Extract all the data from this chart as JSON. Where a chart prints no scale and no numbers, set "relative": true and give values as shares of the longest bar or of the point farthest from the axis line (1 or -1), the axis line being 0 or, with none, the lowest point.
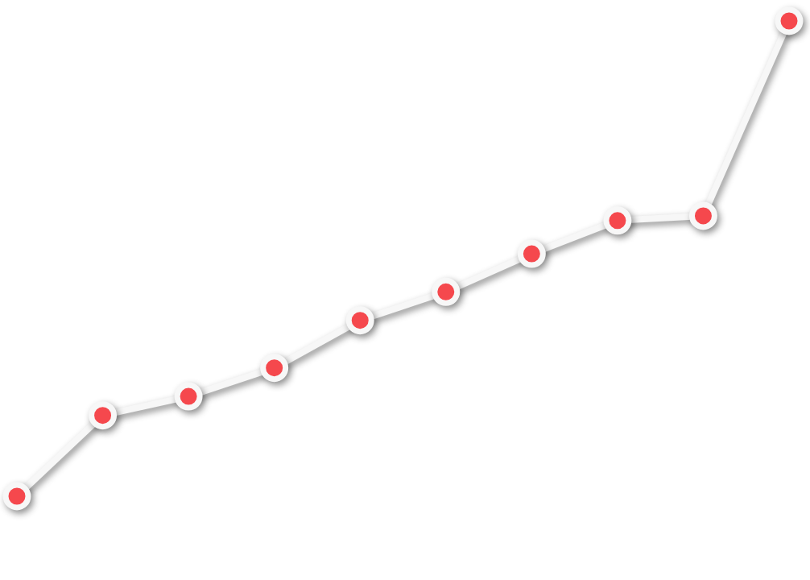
{
  "chart_data": {
    "type": "line",
    "relative": true,
    "marker": "circle",
    "categories": [
      null,
      null,
      null,
      null,
      null,
      null,
      null,
      null,
      null,
      null
    ],
    "series": [
      {
        "color": "#f7f7f7",
        "values": [
          0,
          0.17,
          0.21,
          0.27,
          0.37,
          0.43,
          0.51,
          0.58,
          0.59,
          1
        ]
      }
    ]
  }
}
